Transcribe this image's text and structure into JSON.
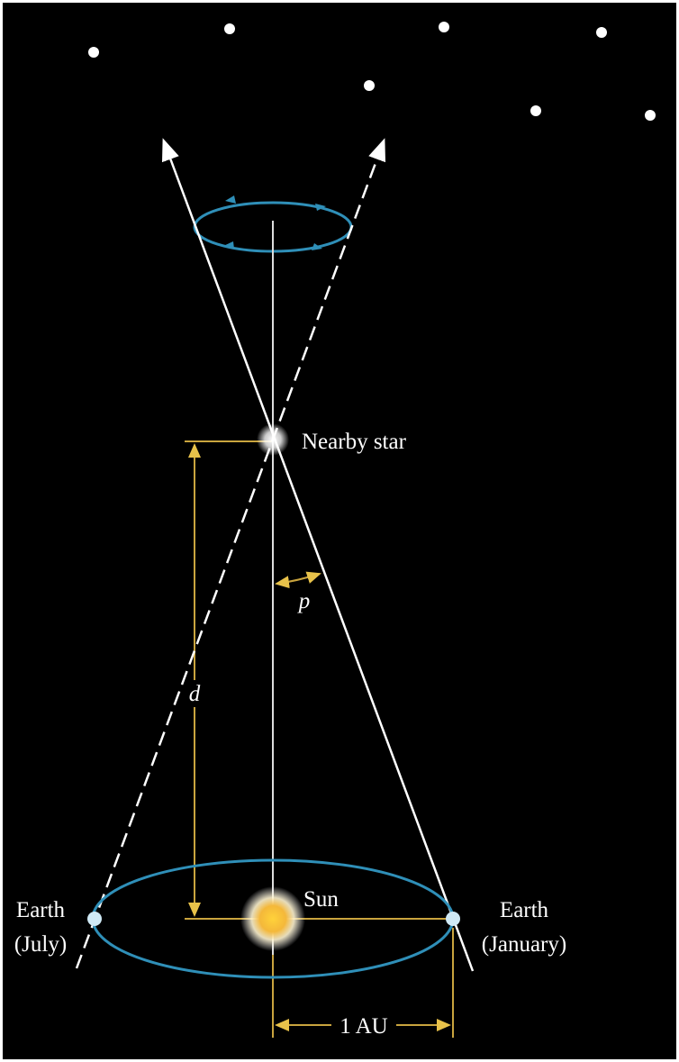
{
  "labels": {
    "star": "Nearby star",
    "angle": "p",
    "distance": "d",
    "sun": "Sun",
    "earth_july": [
      "Earth",
      "(July)"
    ],
    "earth_january": [
      "Earth",
      "(January)"
    ],
    "unit": "1 AU"
  }
}
